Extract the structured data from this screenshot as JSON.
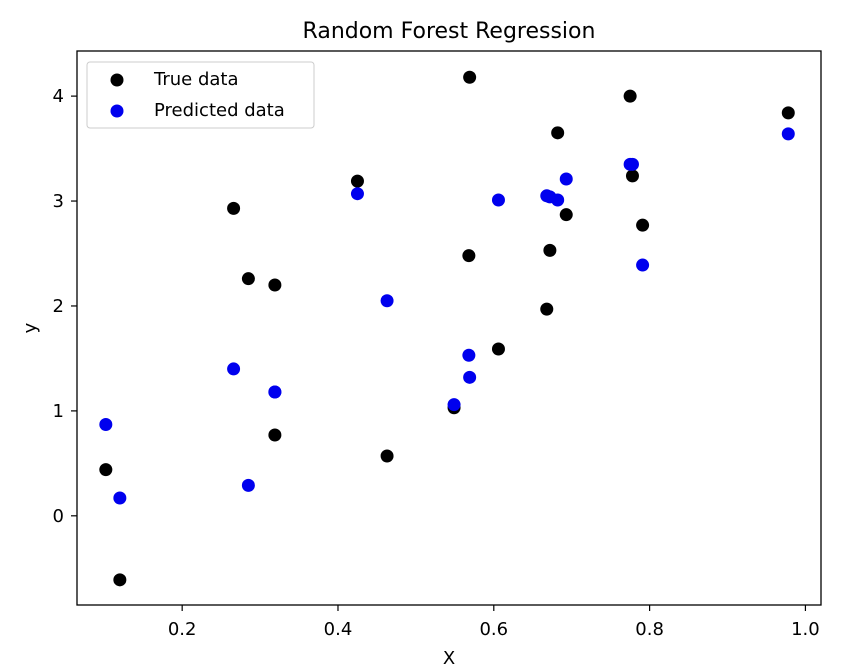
{
  "chart_data": {
    "type": "scatter",
    "title": "Random Forest Regression",
    "xlabel": "X",
    "ylabel": "y",
    "xlim": [
      0.065,
      1.02
    ],
    "ylim": [
      -0.85,
      4.43
    ],
    "xticks": [
      0.2,
      0.4,
      0.6,
      0.8,
      1.0
    ],
    "xtick_labels": [
      "0.2",
      "0.4",
      "0.6",
      "0.8",
      "1.0"
    ],
    "yticks": [
      0,
      1,
      2,
      3,
      4
    ],
    "ytick_labels": [
      "0",
      "1",
      "2",
      "3",
      "4"
    ],
    "grid": false,
    "legend": "top-left",
    "series": [
      {
        "name": "True data",
        "color": "#000000",
        "points": [
          {
            "x": 0.102,
            "y": 0.44
          },
          {
            "x": 0.12,
            "y": -0.61
          },
          {
            "x": 0.266,
            "y": 2.93
          },
          {
            "x": 0.285,
            "y": 2.26
          },
          {
            "x": 0.319,
            "y": 2.2
          },
          {
            "x": 0.319,
            "y": 0.77
          },
          {
            "x": 0.425,
            "y": 3.19
          },
          {
            "x": 0.463,
            "y": 0.57
          },
          {
            "x": 0.549,
            "y": 1.03
          },
          {
            "x": 0.568,
            "y": 2.48
          },
          {
            "x": 0.569,
            "y": 4.18
          },
          {
            "x": 0.606,
            "y": 1.59
          },
          {
            "x": 0.668,
            "y": 1.97
          },
          {
            "x": 0.672,
            "y": 2.53
          },
          {
            "x": 0.682,
            "y": 3.65
          },
          {
            "x": 0.693,
            "y": 2.87
          },
          {
            "x": 0.775,
            "y": 4.0
          },
          {
            "x": 0.778,
            "y": 3.24
          },
          {
            "x": 0.791,
            "y": 2.77
          },
          {
            "x": 0.978,
            "y": 3.84
          }
        ]
      },
      {
        "name": "Predicted data",
        "color": "#0000ee",
        "points": [
          {
            "x": 0.102,
            "y": 0.87
          },
          {
            "x": 0.12,
            "y": 0.17
          },
          {
            "x": 0.266,
            "y": 1.4
          },
          {
            "x": 0.285,
            "y": 0.29
          },
          {
            "x": 0.319,
            "y": 1.18
          },
          {
            "x": 0.319,
            "y": 1.18
          },
          {
            "x": 0.425,
            "y": 3.07
          },
          {
            "x": 0.463,
            "y": 2.05
          },
          {
            "x": 0.549,
            "y": 1.06
          },
          {
            "x": 0.568,
            "y": 1.53
          },
          {
            "x": 0.569,
            "y": 1.32
          },
          {
            "x": 0.606,
            "y": 3.01
          },
          {
            "x": 0.668,
            "y": 3.05
          },
          {
            "x": 0.672,
            "y": 3.04
          },
          {
            "x": 0.682,
            "y": 3.01
          },
          {
            "x": 0.693,
            "y": 3.21
          },
          {
            "x": 0.775,
            "y": 3.35
          },
          {
            "x": 0.778,
            "y": 3.35
          },
          {
            "x": 0.791,
            "y": 2.39
          },
          {
            "x": 0.978,
            "y": 3.64
          }
        ]
      }
    ]
  }
}
